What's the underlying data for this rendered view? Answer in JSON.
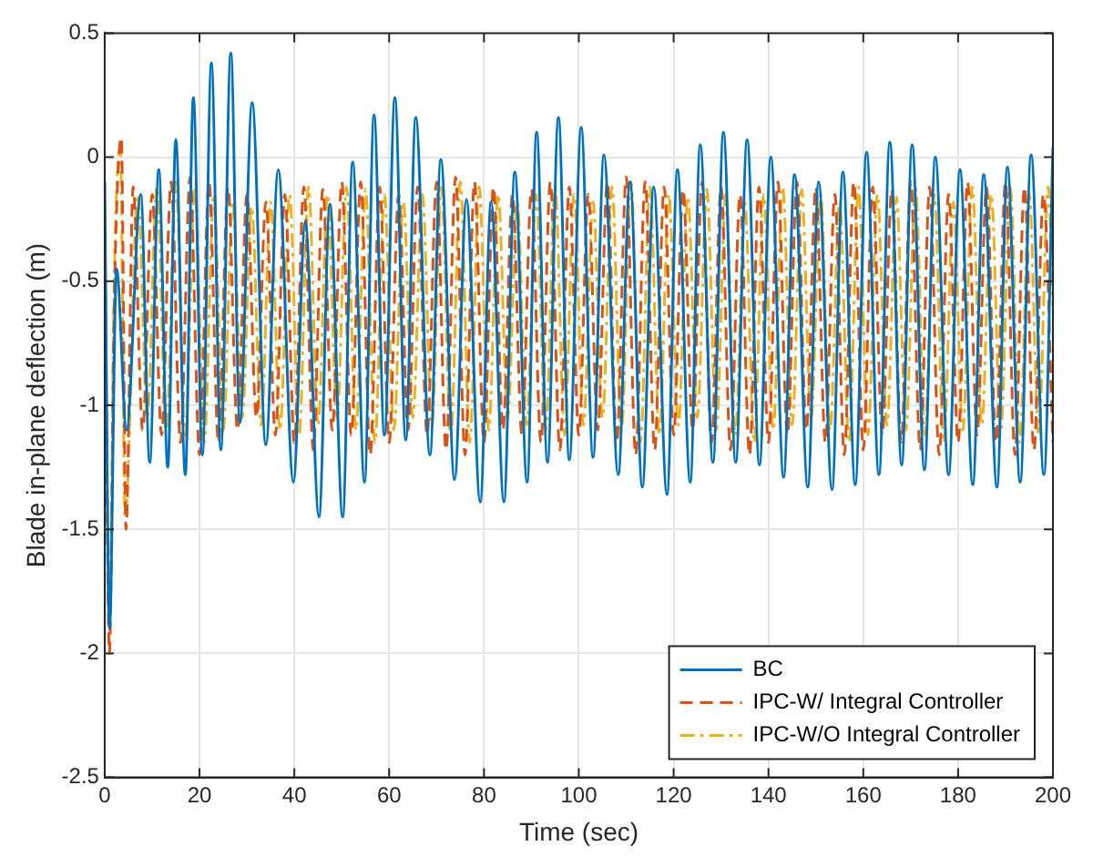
{
  "chart_data": {
    "type": "line",
    "xlabel": "Time (sec)",
    "ylabel": "Blade in-plane deflection (m)",
    "xlim": [
      0,
      200
    ],
    "xticks": [
      0,
      20,
      40,
      60,
      80,
      100,
      120,
      140,
      160,
      180,
      200
    ],
    "ylim": [
      -2.5,
      0.5
    ],
    "yticks": [
      -2.5,
      -2,
      -1.5,
      -1,
      -0.5,
      0,
      0.5
    ],
    "grid": true,
    "legend": "bottom right",
    "series": [
      {
        "name": "BC",
        "color": "#0072bd",
        "line_style": "solid",
        "x": [
          0,
          1,
          2.5,
          4.6,
          7.6,
          9.5,
          11.4,
          13.3,
          15.0,
          17.0,
          18.7,
          20.6,
          22.5,
          24.5,
          26.6,
          28.5,
          31.1,
          34.0,
          36.6,
          39.8,
          42.3,
          45.2,
          47.5,
          50.2,
          52.3,
          54.8,
          56.8,
          59.0,
          61.2,
          63.5,
          65.6,
          68.6,
          70.9,
          73.8,
          76.3,
          79.2,
          81.5,
          84.2,
          86.5,
          89.1,
          91.1,
          93.4,
          95.7,
          98.0,
          100.5,
          103.0,
          105.3,
          108.3,
          110.8,
          113.4,
          115.8,
          118.6,
          120.8,
          123.5,
          125.6,
          128.3,
          130.5,
          133.1,
          135.5,
          138.1,
          140.5,
          143.2,
          145.5,
          148.3,
          150.6,
          153.4,
          155.7,
          158.3,
          160.7,
          163.3,
          165.6,
          168.1,
          170.3,
          172.9,
          175.2,
          178.0,
          180.4,
          183.1,
          185.4,
          188.2,
          190.4,
          193.1,
          195.4,
          198.1,
          200
        ],
        "values": [
          -0.1,
          -1.9,
          -0.45,
          -1.1,
          -0.15,
          -1.23,
          -0.05,
          -1.25,
          0.07,
          -1.28,
          0.24,
          -1.2,
          0.38,
          -1.18,
          0.42,
          -1.07,
          0.22,
          -1.16,
          -0.05,
          -1.31,
          -0.26,
          -1.45,
          -0.19,
          -1.45,
          -0.02,
          -1.31,
          0.17,
          -1.12,
          0.24,
          -1.14,
          0.16,
          -1.2,
          -0.01,
          -1.3,
          -0.17,
          -1.39,
          -0.18,
          -1.39,
          -0.06,
          -1.31,
          0.1,
          -1.23,
          0.16,
          -1.22,
          0.12,
          -1.21,
          0.01,
          -1.28,
          -0.1,
          -1.33,
          -0.12,
          -1.36,
          -0.05,
          -1.31,
          0.05,
          -1.23,
          0.1,
          -1.23,
          0.07,
          -1.24,
          0.0,
          -1.29,
          -0.07,
          -1.33,
          -0.1,
          -1.34,
          -0.06,
          -1.32,
          0.02,
          -1.28,
          0.06,
          -1.24,
          0.05,
          -1.26,
          0.0,
          -1.28,
          -0.05,
          -1.32,
          -0.07,
          -1.33,
          -0.04,
          -1.31,
          0.01,
          -1.28,
          0.04
        ]
      },
      {
        "name": "IPC-W/ Integral Controller",
        "color": "#d95319",
        "line_style": "dashed",
        "x": [
          0,
          1,
          2,
          3.5,
          4.5,
          6,
          8,
          10,
          12,
          14,
          16,
          18,
          20,
          22,
          24,
          26,
          28,
          30,
          32,
          34,
          36,
          38,
          40,
          42,
          44,
          46,
          48,
          50,
          52,
          54,
          56,
          58,
          60,
          62,
          64,
          66,
          68,
          70,
          72,
          74,
          76,
          78,
          80,
          82,
          84,
          86,
          88,
          90,
          92,
          94,
          96,
          98,
          100,
          102,
          104,
          106,
          108,
          110,
          112,
          114,
          116,
          118,
          120,
          122,
          124,
          126,
          128,
          130,
          132,
          134,
          136,
          138,
          140,
          142,
          144,
          146,
          148,
          150,
          152,
          154,
          156,
          158,
          160,
          162,
          164,
          166,
          168,
          170,
          172,
          174,
          176,
          178,
          180,
          182,
          184,
          186,
          188,
          190,
          192,
          194,
          196,
          198,
          200
        ],
        "values": [
          -0.3,
          -2.0,
          -0.6,
          0.08,
          -1.5,
          -0.12,
          -1.1,
          -0.15,
          -1.12,
          -0.1,
          -1.15,
          -0.08,
          -1.2,
          -0.1,
          -1.15,
          -0.12,
          -1.1,
          -0.15,
          -1.05,
          -0.18,
          -1.12,
          -0.15,
          -1.15,
          -0.12,
          -1.18,
          -0.13,
          -1.1,
          -0.1,
          -1.12,
          -0.1,
          -1.2,
          -0.12,
          -1.15,
          -0.15,
          -1.1,
          -0.12,
          -1.12,
          -0.1,
          -1.18,
          -0.08,
          -1.2,
          -0.1,
          -1.15,
          -0.12,
          -1.1,
          -0.15,
          -1.12,
          -0.13,
          -1.15,
          -0.1,
          -1.18,
          -0.12,
          -1.12,
          -0.15,
          -1.1,
          -0.1,
          -1.15,
          -0.08,
          -1.2,
          -0.1,
          -1.18,
          -0.12,
          -1.12,
          -0.13,
          -1.1,
          -0.1,
          -1.15,
          -0.12,
          -1.18,
          -0.15,
          -1.2,
          -0.12,
          -1.15,
          -0.1,
          -1.12,
          -0.1,
          -1.1,
          -0.12,
          -1.15,
          -0.15,
          -1.2,
          -0.1,
          -1.18,
          -0.12,
          -1.12,
          -0.13,
          -1.15,
          -0.1,
          -1.18,
          -0.12,
          -1.2,
          -0.15,
          -1.15,
          -0.1,
          -1.12,
          -0.12,
          -1.15,
          -0.1,
          -1.2,
          -0.12,
          -1.18,
          -0.15,
          -1.15
        ]
      },
      {
        "name": "IPC-W/O Integral Controller",
        "color": "#edb120",
        "line_style": "dotted",
        "x": [
          0,
          1,
          2,
          3.3,
          4.3,
          7,
          9,
          11,
          13,
          15,
          17,
          19,
          21,
          23,
          25,
          27,
          29,
          31,
          33,
          35,
          37,
          39,
          41,
          43,
          45,
          47,
          49,
          51,
          53,
          55,
          57,
          59,
          61,
          63,
          65,
          67,
          69,
          71,
          73,
          75,
          77,
          79,
          81,
          83,
          85,
          87,
          89,
          91,
          93,
          95,
          97,
          99,
          101,
          103,
          105,
          107,
          109,
          111,
          113,
          115,
          117,
          119,
          121,
          123,
          125,
          127,
          129,
          131,
          133,
          135,
          137,
          139,
          141,
          143,
          145,
          147,
          149,
          151,
          153,
          155,
          157,
          159,
          161,
          163,
          165,
          167,
          169,
          171,
          173,
          175,
          177,
          179,
          181,
          183,
          185,
          187,
          189,
          191,
          193,
          195,
          197,
          199,
          200
        ],
        "values": [
          -0.2,
          -1.9,
          -0.5,
          0.05,
          -1.45,
          -0.15,
          -1.05,
          -0.12,
          -1.1,
          -0.1,
          -1.12,
          -0.12,
          -1.15,
          -0.15,
          -1.1,
          -0.18,
          -1.05,
          -0.2,
          -1.08,
          -0.18,
          -1.1,
          -0.15,
          -1.12,
          -0.12,
          -1.08,
          -0.15,
          -1.05,
          -0.12,
          -1.1,
          -0.13,
          -1.15,
          -0.15,
          -1.1,
          -0.18,
          -1.05,
          -0.15,
          -1.08,
          -0.12,
          -1.12,
          -0.1,
          -1.15,
          -0.12,
          -1.1,
          -0.15,
          -1.05,
          -0.18,
          -1.08,
          -0.15,
          -1.1,
          -0.12,
          -1.12,
          -0.15,
          -1.08,
          -0.18,
          -1.05,
          -0.12,
          -1.1,
          -0.1,
          -1.15,
          -0.12,
          -1.12,
          -0.15,
          -1.08,
          -0.16,
          -1.05,
          -0.13,
          -1.1,
          -0.15,
          -1.12,
          -0.18,
          -1.15,
          -0.15,
          -1.1,
          -0.12,
          -1.08,
          -0.13,
          -1.05,
          -0.15,
          -1.1,
          -0.18,
          -1.15,
          -0.12,
          -1.12,
          -0.15,
          -1.08,
          -0.16,
          -1.1,
          -0.12,
          -1.12,
          -0.15,
          -1.15,
          -0.18,
          -1.1,
          -0.12,
          -1.08,
          -0.15,
          -1.1,
          -0.12,
          -1.15,
          -0.15,
          -1.12,
          -0.12,
          -0.6
        ]
      }
    ]
  }
}
